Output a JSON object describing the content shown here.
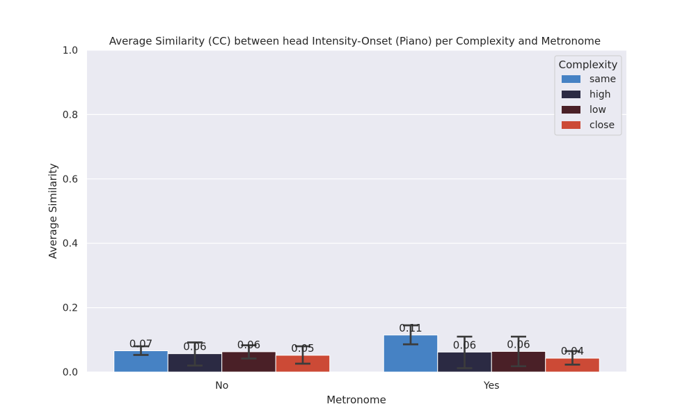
{
  "chart_data": {
    "type": "bar",
    "title": "Average Similarity (CC) between head Intensity-Onset (Piano) per Complexity and Metronome",
    "xlabel": "Metronome",
    "ylabel": "Average Similarity",
    "categories": [
      "No",
      "Yes"
    ],
    "ylim": [
      0,
      1.0
    ],
    "yticks": [
      "0.0",
      "0.2",
      "0.4",
      "0.6",
      "0.8",
      "1.0"
    ],
    "grid": true,
    "legend": {
      "title": "Complexity",
      "placement": "top-right"
    },
    "series": [
      {
        "name": "same",
        "color": "#4682c4",
        "values": [
          0.066,
          0.115
        ],
        "err_low": [
          0.053,
          0.086
        ],
        "err_high": [
          0.08,
          0.145
        ],
        "labels": [
          "0.07",
          "0.11"
        ]
      },
      {
        "name": "high",
        "color": "#2b2a43",
        "values": [
          0.057,
          0.062
        ],
        "err_low": [
          0.02,
          0.012
        ],
        "err_high": [
          0.092,
          0.11
        ],
        "labels": [
          "0.06",
          "0.06"
        ]
      },
      {
        "name": "low",
        "color": "#4a2027",
        "values": [
          0.063,
          0.064
        ],
        "err_low": [
          0.042,
          0.018
        ],
        "err_high": [
          0.083,
          0.11
        ],
        "labels": [
          "0.06",
          "0.06"
        ]
      },
      {
        "name": "close",
        "color": "#cc4a36",
        "values": [
          0.052,
          0.043
        ],
        "err_low": [
          0.026,
          0.023
        ],
        "err_high": [
          0.08,
          0.065
        ],
        "labels": [
          "0.05",
          "0.04"
        ]
      }
    ]
  }
}
